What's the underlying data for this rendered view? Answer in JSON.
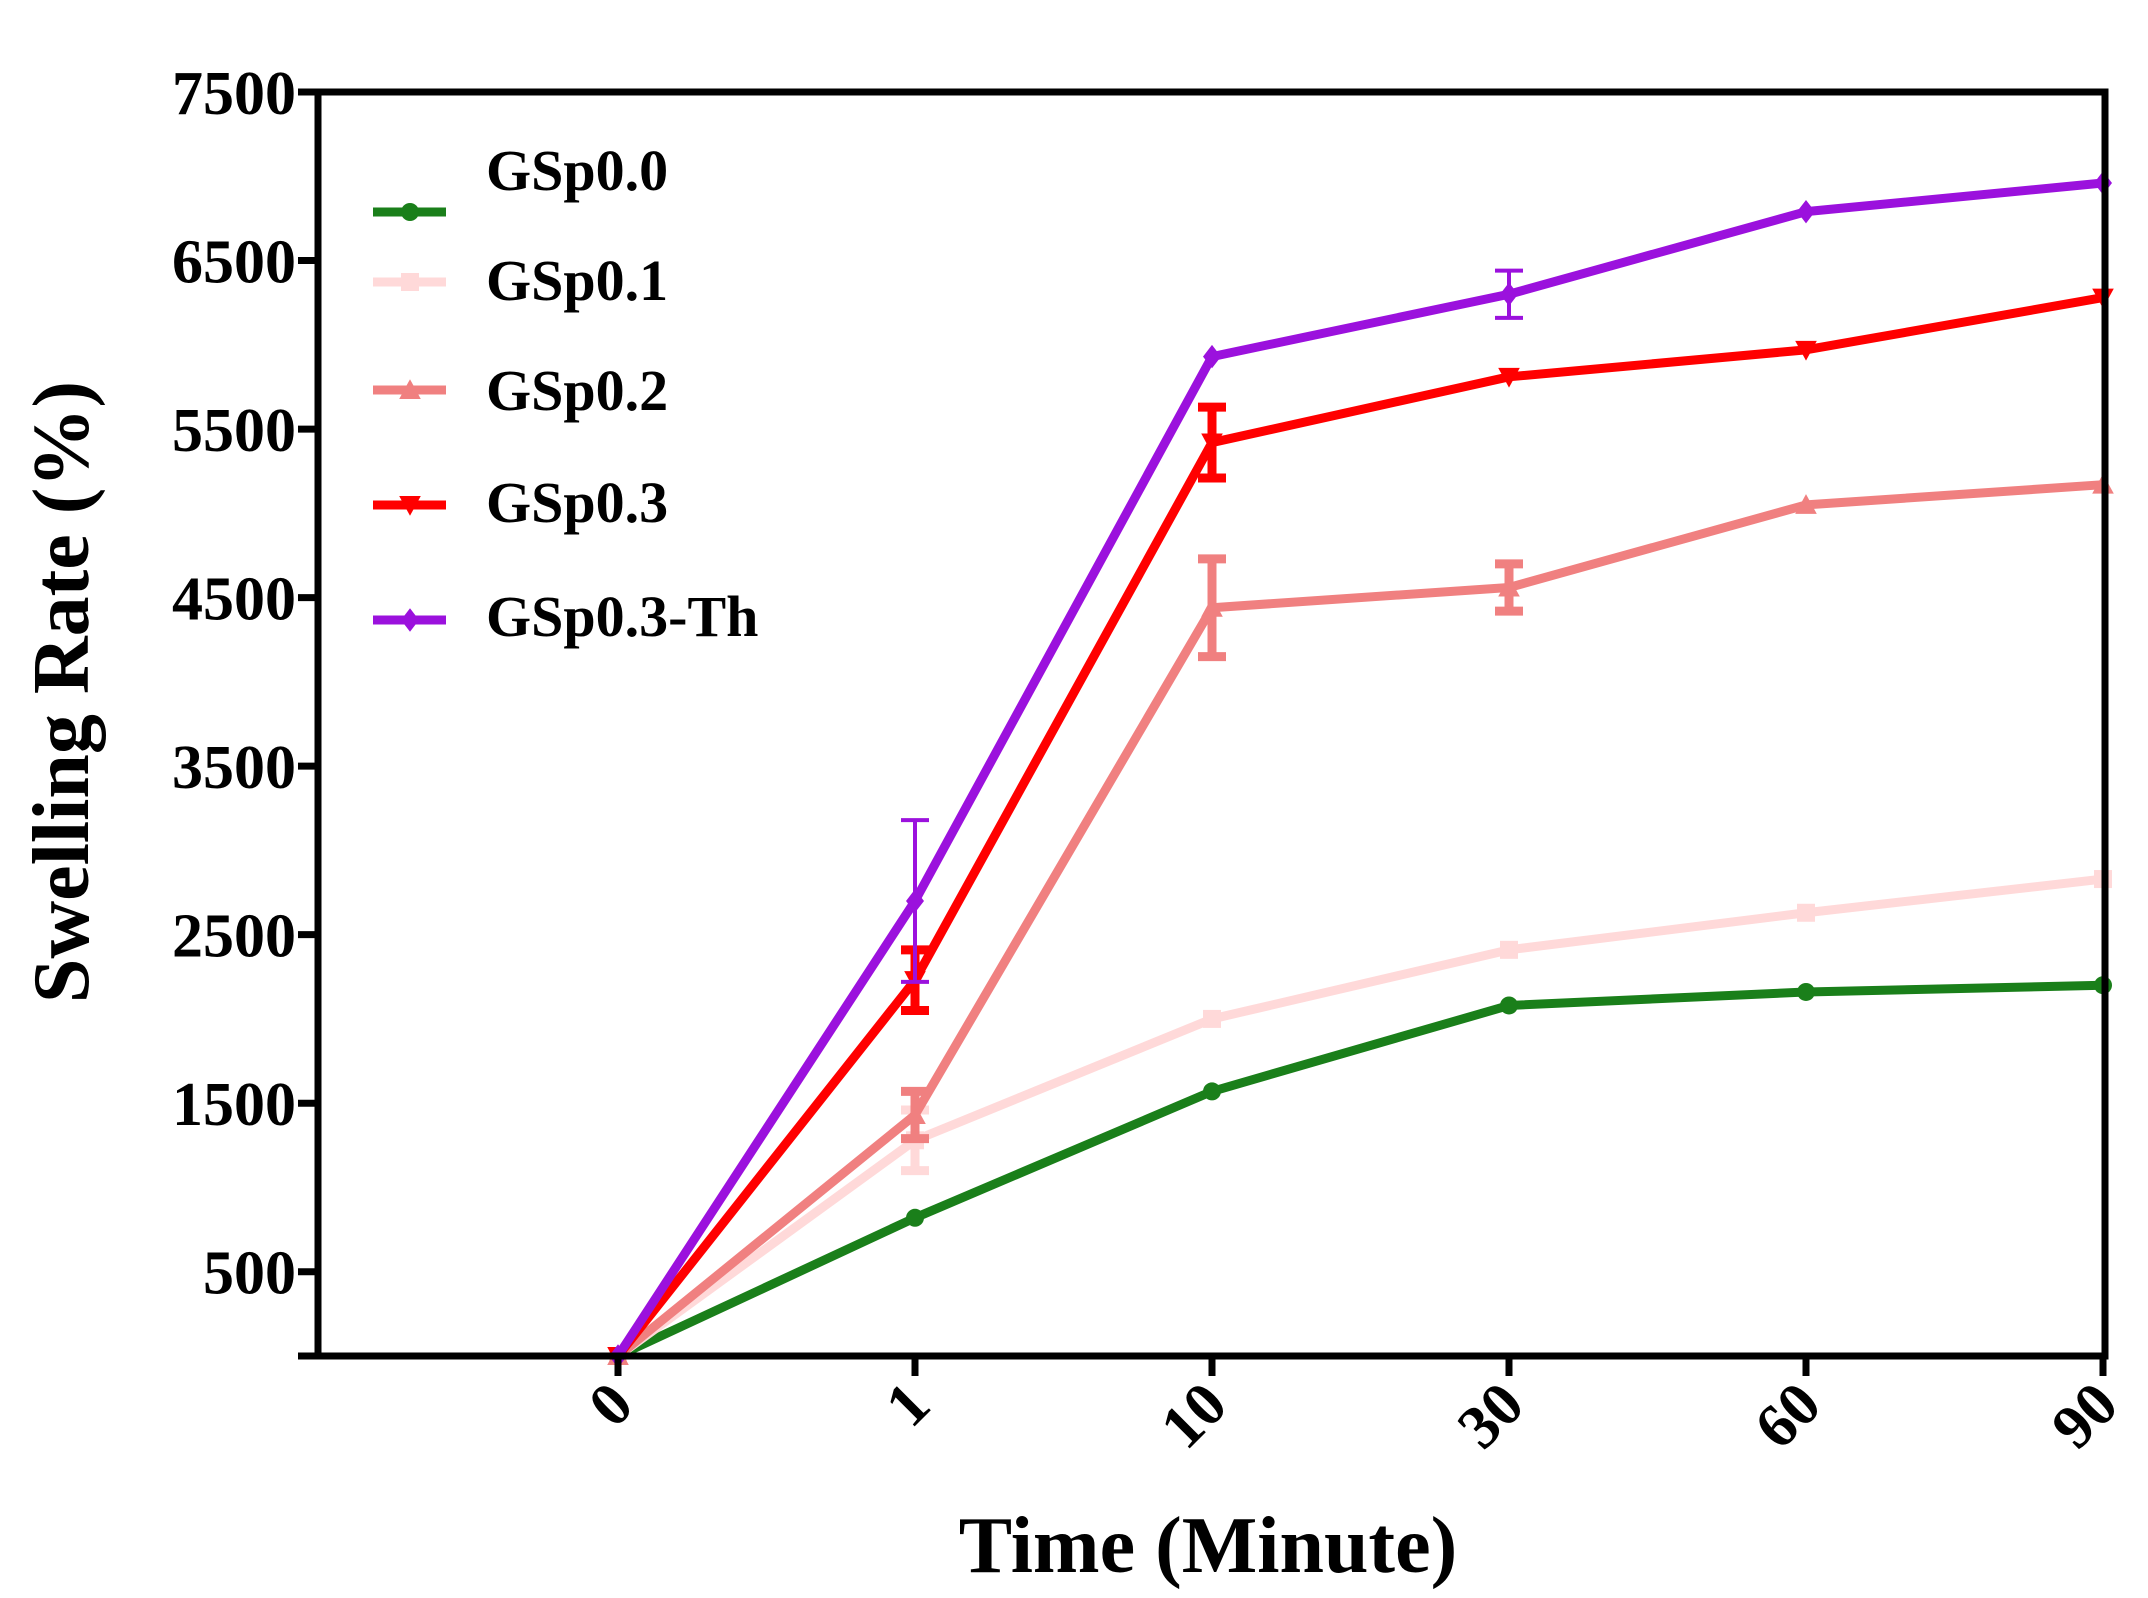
{
  "chart_data": {
    "type": "line",
    "title": "",
    "xlabel": "Time (Minute)",
    "ylabel": "Swelling Rate (%)",
    "categories": [
      "0",
      "1",
      "10",
      "30",
      "60",
      "90"
    ],
    "yticks": [
      500,
      1500,
      2500,
      3500,
      4500,
      5500,
      6500,
      7500
    ],
    "ylim": [
      0,
      7500
    ],
    "grid": false,
    "legend": "top-left",
    "series": [
      {
        "name": "GSp0.0",
        "color": "#1a7f1a",
        "marker": "circle",
        "values": [
          0,
          820,
          1570,
          2080,
          2160,
          2200
        ],
        "errors": [
          0,
          0,
          0,
          0,
          0,
          0
        ]
      },
      {
        "name": "GSp0.1",
        "color": "#ffd9d9",
        "marker": "square",
        "values": [
          0,
          1280,
          2000,
          2410,
          2630,
          2830
        ],
        "errors": [
          0,
          180,
          0,
          0,
          0,
          0
        ]
      },
      {
        "name": "GSp0.2",
        "color": "#f08080",
        "marker": "triangle-up",
        "values": [
          0,
          1430,
          4440,
          4560,
          5050,
          5170
        ],
        "errors": [
          0,
          140,
          290,
          140,
          0,
          0
        ]
      },
      {
        "name": "GSp0.3",
        "color": "#ff0000",
        "marker": "triangle-down",
        "values": [
          0,
          2230,
          5420,
          5810,
          5970,
          6280
        ],
        "errors": [
          0,
          180,
          210,
          0,
          0,
          0
        ]
      },
      {
        "name": "GSp0.3-Th",
        "color": "#9b11dd",
        "marker": "diamond",
        "values": [
          0,
          2700,
          5930,
          6300,
          6790,
          6960
        ],
        "errors": [
          0,
          480,
          0,
          140,
          0,
          0
        ]
      }
    ]
  }
}
